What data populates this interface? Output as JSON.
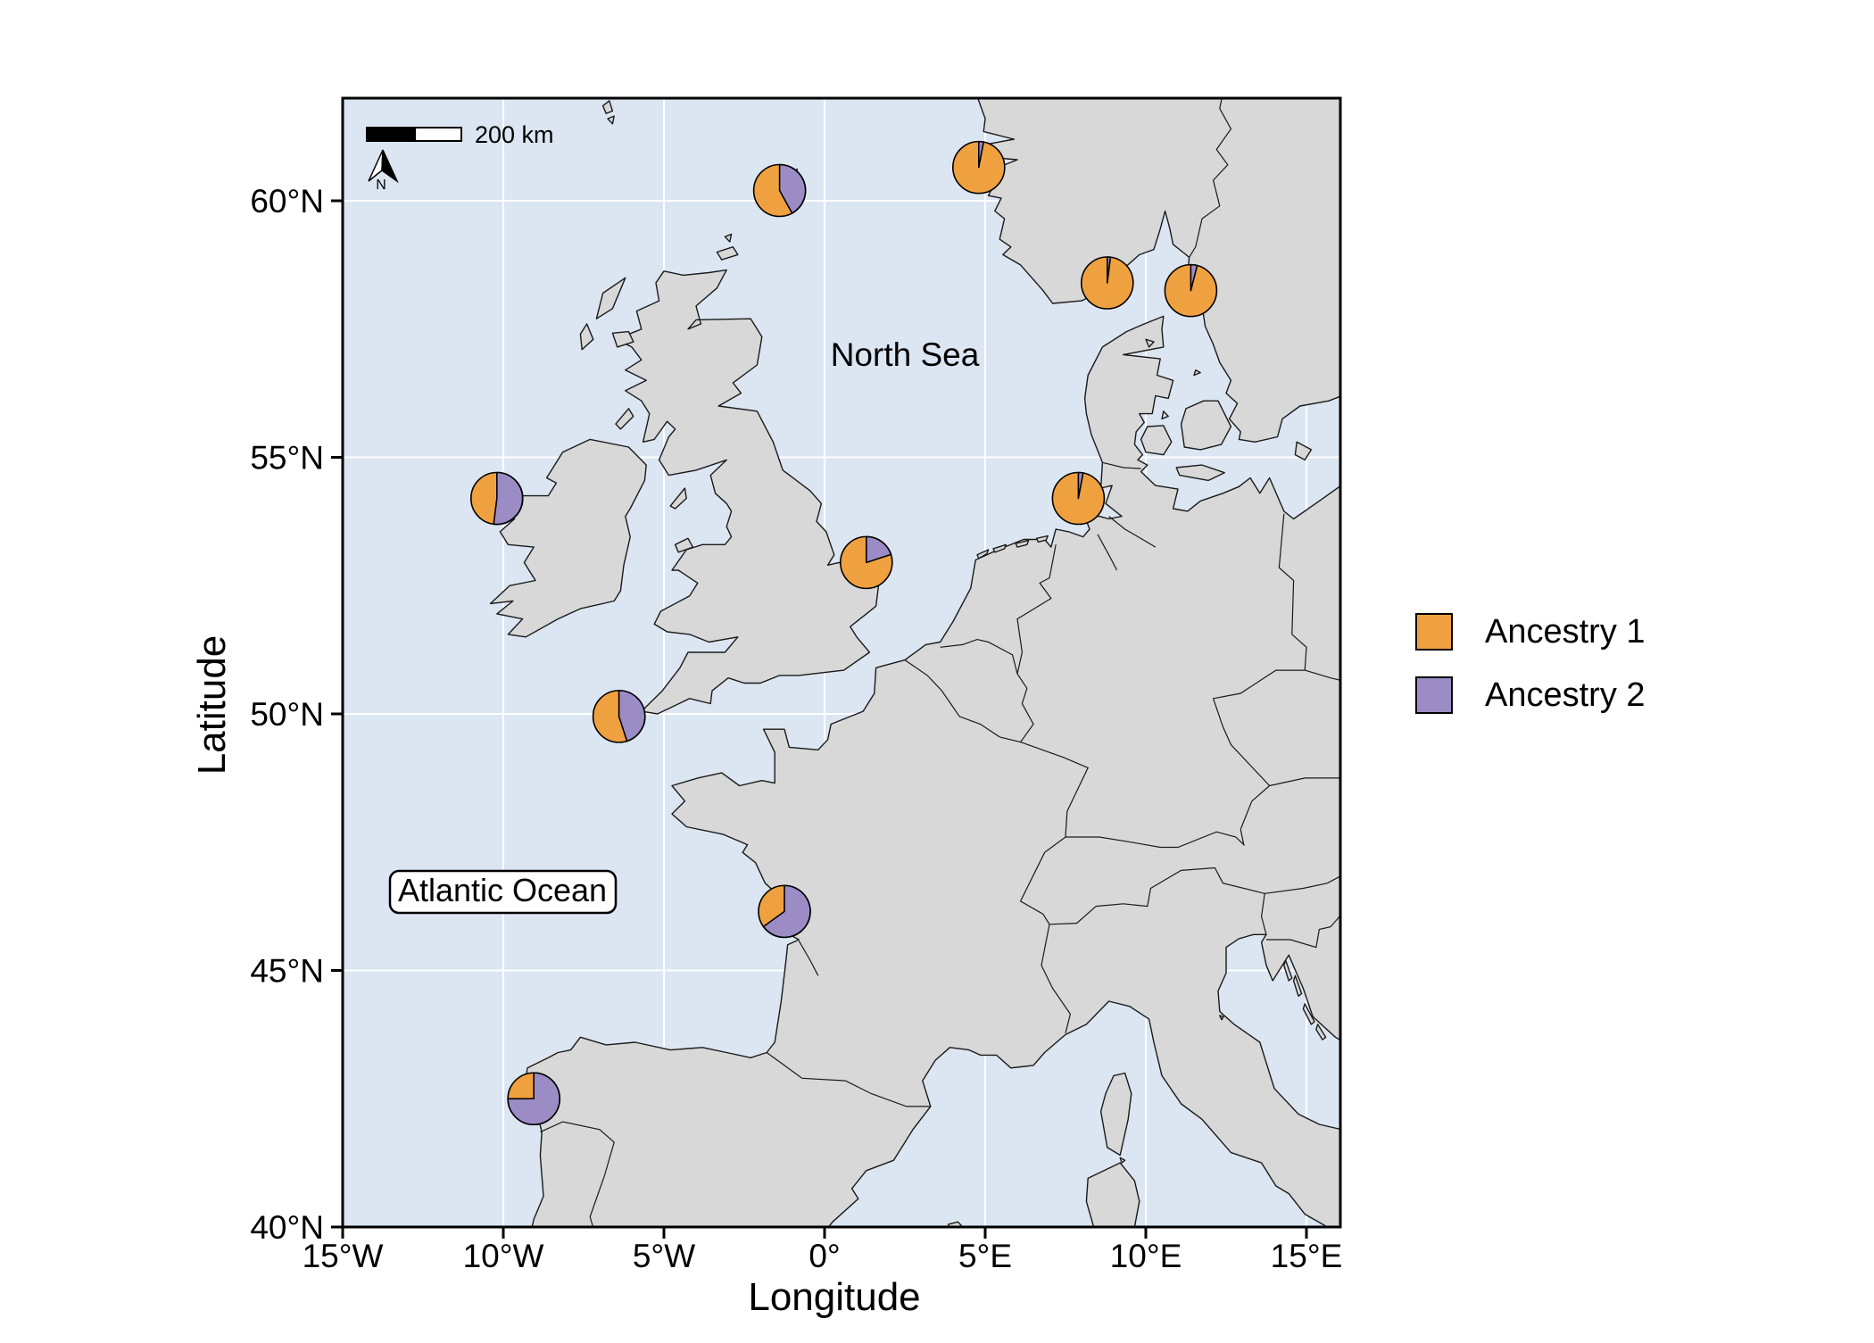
{
  "figure": {
    "background": "#FFFFFF"
  },
  "colors": {
    "sea": "#DBE6F2",
    "land": "#D8D8D8",
    "coast": "#1A1A1A",
    "grid": "#FFFFFF",
    "panel_border": "#000000",
    "ancestry1": "#F0A13F",
    "ancestry2": "#9C8CC5"
  },
  "map": {
    "labels": {
      "north_sea": "North Sea",
      "atlantic_ocean": "Atlantic Ocean"
    },
    "scale_bar": {
      "label": "200 km"
    },
    "north_arrow": {
      "label": "N"
    }
  },
  "axes": {
    "x": {
      "title": "Longitude",
      "ticks": [
        {
          "label": "15°W",
          "lon": -15
        },
        {
          "label": "10°W",
          "lon": -10
        },
        {
          "label": "5°W",
          "lon": -5
        },
        {
          "label": "0°",
          "lon": 0
        },
        {
          "label": "5°E",
          "lon": 5
        },
        {
          "label": "10°E",
          "lon": 10
        },
        {
          "label": "15°E",
          "lon": 15
        }
      ]
    },
    "y": {
      "title": "Latitude",
      "ticks": [
        {
          "label": "60°N",
          "lat": 60
        },
        {
          "label": "55°N",
          "lat": 55
        },
        {
          "label": "50°N",
          "lat": 50
        },
        {
          "label": "45°N",
          "lat": 45
        },
        {
          "label": "40°N",
          "lat": 40
        }
      ]
    }
  },
  "legend": {
    "items": [
      {
        "label": "Ancestry 1",
        "color_key": "ancestry1"
      },
      {
        "label": "Ancestry 2",
        "color_key": "ancestry2"
      }
    ]
  },
  "chart_data": {
    "type": "pie",
    "description": "Map of western Europe with pie charts at sampling sites showing proportions of two genetic ancestries",
    "legend": [
      "Ancestry 1",
      "Ancestry 2"
    ],
    "axis_ranges": {
      "lon": [
        -15,
        16.1
      ],
      "lat": [
        40,
        62
      ]
    },
    "pie_radius_px": 29,
    "sites": [
      {
        "lon": -1.4,
        "lat": 60.2,
        "values": [
          58,
          42
        ]
      },
      {
        "lon": 4.8,
        "lat": 60.65,
        "values": [
          97,
          3
        ]
      },
      {
        "lon": 8.8,
        "lat": 58.4,
        "values": [
          98,
          2
        ]
      },
      {
        "lon": 11.4,
        "lat": 58.25,
        "values": [
          96,
          4
        ]
      },
      {
        "lon": -10.2,
        "lat": 54.2,
        "values": [
          48,
          52
        ]
      },
      {
        "lon": 7.9,
        "lat": 54.2,
        "values": [
          97,
          3
        ]
      },
      {
        "lon": 1.3,
        "lat": 52.95,
        "values": [
          80,
          20
        ]
      },
      {
        "lon": -6.4,
        "lat": 49.95,
        "values": [
          55,
          45
        ]
      },
      {
        "lon": -1.25,
        "lat": 46.15,
        "values": [
          35,
          65
        ]
      },
      {
        "lon": -9.05,
        "lat": 42.5,
        "values": [
          25,
          75
        ]
      }
    ]
  }
}
